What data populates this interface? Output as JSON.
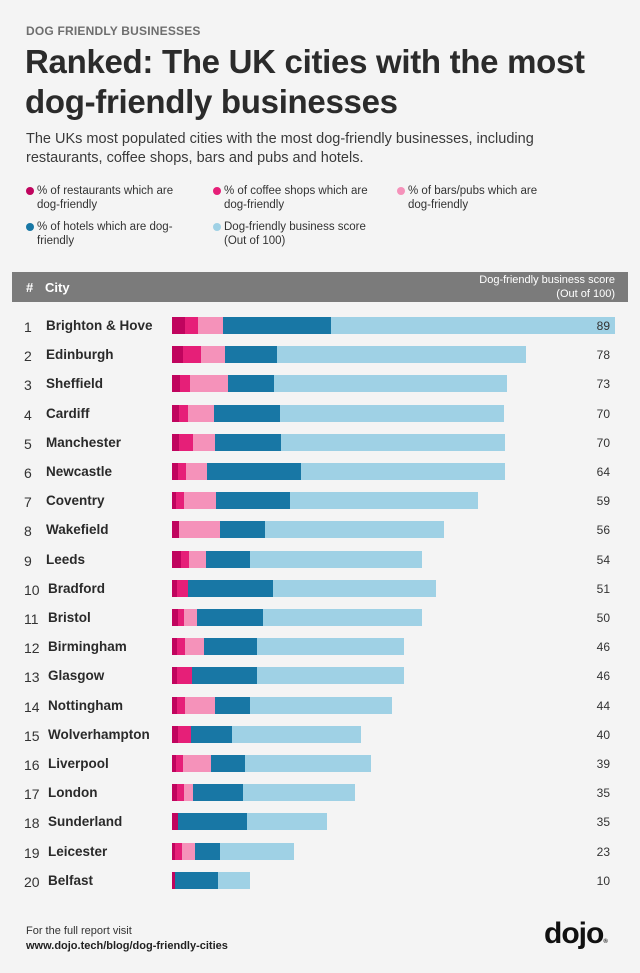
{
  "kicker": "DOG FRIENDLY BUSINESSES",
  "title": "Ranked: The UK cities with the most dog-friendly businesses",
  "subtitle": "The UKs most populated cities with the most dog-friendly businesses, including restaurants, coffee shops, bars and pubs and hotels.",
  "colors": {
    "restaurants": "#c0045e",
    "coffee": "#e61f78",
    "bars": "#f592ba",
    "hotels": "#1877a5",
    "score": "#9fd1e5"
  },
  "legend": [
    {
      "key": "restaurants",
      "label": "% of restaurants which are dog-friendly"
    },
    {
      "key": "coffee",
      "label": "% of coffee shops which are dog-friendly"
    },
    {
      "key": "bars",
      "label": "% of bars/pubs which are dog-friendly"
    },
    {
      "key": "hotels",
      "label": "% of hotels which are dog-friendly"
    },
    {
      "key": "score",
      "label": "Dog-friendly business score (Out of 100)"
    }
  ],
  "table_header": {
    "rank": "#",
    "city": "City",
    "score_line1": "Dog-friendly business score",
    "score_line2": "(Out of 100)"
  },
  "chart_data": {
    "type": "bar",
    "orientation": "horizontal-stacked",
    "title": "Ranked: The UK cities with the most dog-friendly businesses",
    "categories": [
      "Brighton & Hove",
      "Edinburgh",
      "Sheffield",
      "Cardiff",
      "Manchester",
      "Newcastle",
      "Coventry",
      "Wakefield",
      "Leeds",
      "Bradford",
      "Bristol",
      "Birmingham",
      "Glasgow",
      "Nottingham",
      "Wolverhampton",
      "Liverpool",
      "London",
      "Sunderland",
      "Leicester",
      "Belfast"
    ],
    "ranks": [
      1,
      2,
      3,
      4,
      5,
      6,
      7,
      8,
      9,
      10,
      11,
      12,
      13,
      14,
      15,
      16,
      17,
      18,
      19,
      20
    ],
    "scores": [
      89,
      78,
      73,
      70,
      70,
      64,
      59,
      56,
      54,
      51,
      50,
      46,
      46,
      44,
      40,
      39,
      35,
      35,
      23,
      10
    ],
    "series": [
      {
        "name": "% of restaurants which are dog-friendly",
        "key": "restaurants",
        "values": [
          2.6,
          2.2,
          1.6,
          1.4,
          1.4,
          1.2,
          0.8,
          1.5,
          1.8,
          1.0,
          1.2,
          1.0,
          1.0,
          1.0,
          1.2,
          0.9,
          1.0,
          1.2,
          0.7,
          0.6
        ]
      },
      {
        "name": "% of coffee shops which are dog-friendly",
        "key": "coffee",
        "values": [
          2.7,
          3.6,
          2.0,
          1.8,
          2.8,
          1.7,
          1.7,
          0,
          1.6,
          2.2,
          1.3,
          1.7,
          3.0,
          1.6,
          2.6,
          1.3,
          1.5,
          0,
          1.3,
          0
        ]
      },
      {
        "name": "% of bars/pubs which are dog-friendly",
        "key": "bars",
        "values": [
          4.9,
          4.8,
          7.7,
          5.2,
          4.4,
          4.1,
          6.4,
          8.1,
          3.4,
          0,
          2.6,
          3.8,
          0,
          6.0,
          0,
          5.6,
          1.8,
          0,
          2.6,
          0
        ]
      },
      {
        "name": "% of hotels which are dog-friendly",
        "key": "hotels",
        "values": [
          21.6,
          10.4,
          9.1,
          13.2,
          13.2,
          18.8,
          14.7,
          9.1,
          8.8,
          17.1,
          13.1,
          10.5,
          13.0,
          7.1,
          8.2,
          6.8,
          9.9,
          13.8,
          5.0,
          8.7
        ]
      },
      {
        "name": "Dog-friendly business score (Out of 100)",
        "key": "score",
        "values": [
          57.0,
          50.0,
          46.8,
          45.0,
          44.9,
          41.0,
          37.8,
          35.9,
          34.6,
          32.7,
          32.0,
          29.5,
          29.4,
          28.3,
          25.8,
          25.2,
          22.4,
          16.0,
          14.8,
          6.3
        ]
      }
    ],
    "xlabel": "",
    "ylabel": "",
    "xlim": [
      0,
      90
    ],
    "grid": false,
    "legend_position": "top"
  },
  "footer": {
    "line1": "For the full report visit",
    "line2": "www.dojo.tech/blog/dog-friendly-cities",
    "logo": "dojo",
    "logo_mark": "®"
  }
}
